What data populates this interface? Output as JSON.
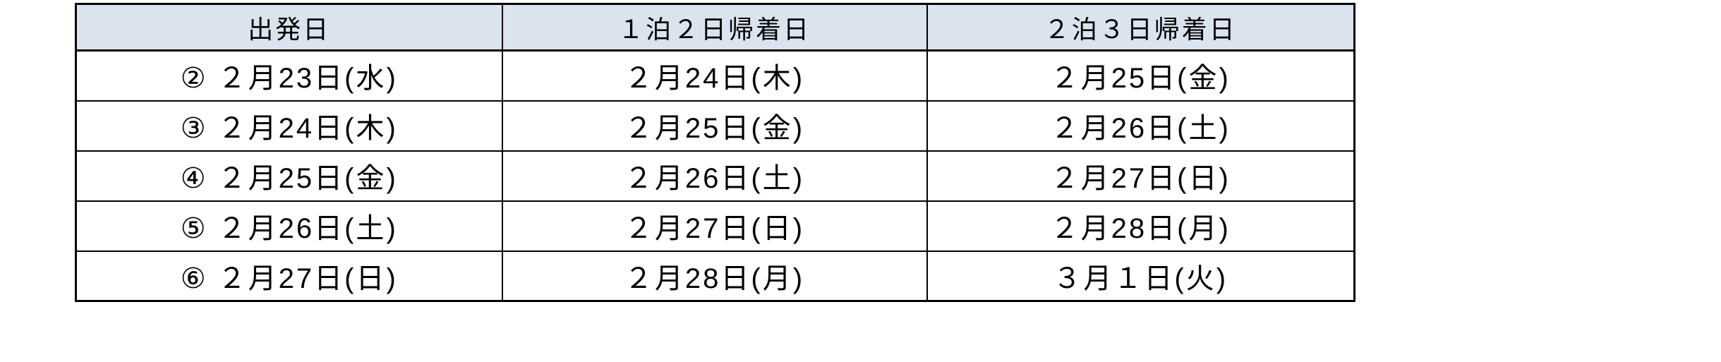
{
  "colors": {
    "page_background": "#ffffff",
    "header_background": "#dbe3ef",
    "border": "#000000",
    "text": "#000000"
  },
  "table": {
    "headers": [
      "出発日",
      "１泊２日帰着日",
      "２泊３日帰着日"
    ],
    "rows": [
      [
        "② ２月23日(水)",
        "２月24日(木)",
        "２月25日(金)"
      ],
      [
        "③ ２月24日(木)",
        "２月25日(金)",
        "２月26日(土)"
      ],
      [
        "④ ２月25日(金)",
        "２月26日(土)",
        "２月27日(日)"
      ],
      [
        "⑤ ２月26日(土)",
        "２月27日(日)",
        "２月28日(月)"
      ],
      [
        "⑥ ２月27日(日)",
        "２月28日(月)",
        "３月１日(火)"
      ]
    ]
  }
}
